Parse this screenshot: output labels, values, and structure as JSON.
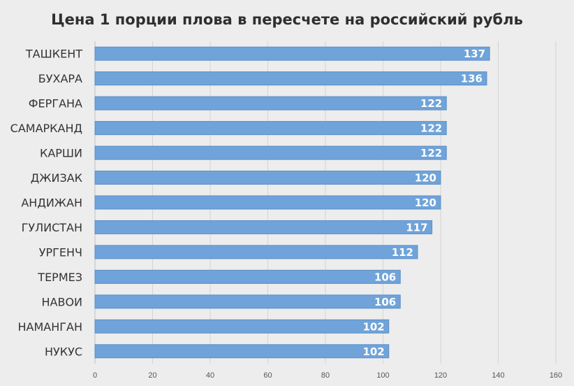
{
  "chart_data": {
    "type": "bar",
    "orientation": "horizontal",
    "title": "Цена 1 порции плова в пересчете на российский рубль",
    "categories": [
      "ТАШКЕНТ",
      "БУХАРА",
      "ФЕРГАНА",
      "САМАРКАНД",
      "КАРШИ",
      "ДЖИЗАК",
      "АНДИЖАН",
      "ГУЛИСТАН",
      "УРГЕНЧ",
      "ТЕРМЕЗ",
      "НАВОИ",
      "НАМАНГАН",
      "НУКУС"
    ],
    "values": [
      137,
      136,
      122,
      122,
      122,
      120,
      120,
      117,
      112,
      106,
      106,
      102,
      102
    ],
    "xlim": [
      0,
      160
    ],
    "xticks": [
      0,
      20,
      40,
      60,
      80,
      100,
      120,
      140,
      160
    ],
    "grid": true,
    "legend": "none",
    "colors": {
      "bar": "#6fa3d9",
      "bar_stroke": "#5b8fc7",
      "background": "#ededed"
    }
  }
}
